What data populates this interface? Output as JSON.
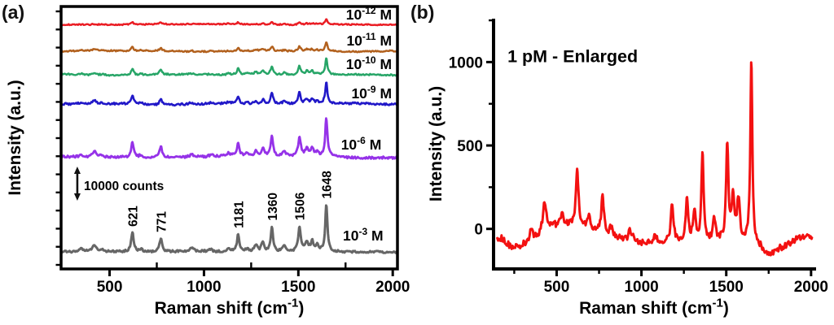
{
  "figure": {
    "background": "#ffffff"
  },
  "panels": {
    "a": {
      "letter": "(a)"
    },
    "b": {
      "letter": "(b)"
    }
  },
  "chart_data": [
    {
      "id": "a",
      "type": "line",
      "xlabel": {
        "pre": "Raman shift (cm",
        "sup": "-1",
        "post": ")"
      },
      "ylabel": "Intensity (a.u.)",
      "xlim": [
        243,
        2025
      ],
      "ylim": [
        0,
        1
      ],
      "xticks": [
        500,
        1000,
        1500,
        2000
      ],
      "xminor": [
        750,
        1250,
        1750
      ],
      "yminor_count": 15,
      "box": true,
      "grid": false,
      "axis_color": "#000000",
      "peak_label_color": "#3d3d3d",
      "peak_labels": [
        621,
        771,
        1181,
        1360,
        1506,
        1648
      ],
      "peak_label_series": "10^-3 M",
      "scalebar": {
        "label": "10000 counts",
        "x": 329,
        "arrow_frac": [
          0.263,
          0.387
        ],
        "label_x": 364,
        "label_y_frac": 0.3
      },
      "peaks_shared": [
        [
          350,
          12,
          0.07
        ],
        [
          420,
          13,
          0.14
        ],
        [
          460,
          10,
          0.05
        ],
        [
          621,
          8,
          0.4
        ],
        [
          665,
          10,
          0.05
        ],
        [
          771,
          8,
          0.28
        ],
        [
          935,
          13,
          0.07
        ],
        [
          1035,
          12,
          0.04
        ],
        [
          1130,
          10,
          0.07
        ],
        [
          1181,
          8,
          0.36
        ],
        [
          1230,
          10,
          0.08
        ],
        [
          1275,
          10,
          0.16
        ],
        [
          1312,
          9,
          0.22
        ],
        [
          1360,
          8,
          0.52
        ],
        [
          1425,
          11,
          0.12
        ],
        [
          1506,
          8,
          0.52
        ],
        [
          1545,
          10,
          0.2
        ],
        [
          1573,
          8,
          0.22
        ],
        [
          1600,
          8,
          0.12
        ],
        [
          1648,
          7,
          1.0
        ]
      ],
      "series": [
        {
          "name": "10^-3 M",
          "color": "#666666",
          "baseline": 0.065,
          "amp": 0.176,
          "noise": 0.004,
          "seed": 11,
          "width": 3.0,
          "tag": {
            "base": "10",
            "exp": "-3",
            "unit": " M",
            "x": 1950,
            "y_frac": 0.108
          }
        },
        {
          "name": "10^-6 M",
          "color": "#9532e8",
          "baseline": 0.427,
          "amp": 0.145,
          "noise": 0.0045,
          "seed": 22,
          "width": 2.8,
          "tag": {
            "base": "10",
            "exp": "-6",
            "unit": " M",
            "x": 1940,
            "y_frac": 0.455
          }
        },
        {
          "name": "10^-9 M",
          "color": "#2118c8",
          "baseline": 0.628,
          "amp": 0.08,
          "noise": 0.004,
          "seed": 33,
          "width": 2.6,
          "tag": {
            "base": "10",
            "exp": "-9",
            "unit": " M",
            "x": 1995,
            "y_frac": 0.65
          }
        },
        {
          "name": "10^-10 M",
          "color": "#27a567",
          "baseline": 0.74,
          "amp": 0.062,
          "noise": 0.003,
          "seed": 44,
          "width": 2.5,
          "tag": {
            "base": "10",
            "exp": "-10",
            "unit": " M",
            "x": 1995,
            "y_frac": 0.762
          }
        },
        {
          "name": "10^-11 M",
          "color": "#b2611e",
          "baseline": 0.83,
          "amp": 0.034,
          "noise": 0.0026,
          "seed": 55,
          "width": 2.5,
          "tag": {
            "base": "10",
            "exp": "-11",
            "unit": " M",
            "x": 1995,
            "y_frac": 0.851
          }
        },
        {
          "name": "10^-12 M",
          "color": "#ea1d24",
          "baseline": 0.932,
          "amp": 0.0186,
          "noise": 0.0022,
          "seed": 66,
          "width": 2.5,
          "tag": {
            "base": "10",
            "exp": "-12",
            "unit": " M",
            "x": 1995,
            "y_frac": 0.95
          }
        }
      ]
    },
    {
      "id": "b",
      "type": "line",
      "inset_title": {
        "text": "1 pM - Enlarged",
        "x": 210,
        "y": 1000
      },
      "xlabel": {
        "pre": "Raman shift (cm",
        "sup": "-1",
        "post": ")"
      },
      "ylabel": "Intensity (a.u.)",
      "xlim": [
        128,
        2020
      ],
      "ylim": [
        -240,
        1260
      ],
      "xticks": [
        500,
        1000,
        1500,
        2000
      ],
      "xminor": [
        250,
        750,
        1250,
        1750
      ],
      "yticks": [
        0,
        500,
        1000
      ],
      "yminor": [
        250,
        750,
        1250
      ],
      "box": false,
      "grid": false,
      "axis_color": "#000000",
      "series": [
        {
          "name": "1 pM",
          "color": "#f31111",
          "baseline": -70,
          "noise": 20,
          "wander": 28,
          "seed": 7,
          "width": 3.0,
          "xrange": [
            150,
            2005
          ],
          "peaks": [
            [
              165,
              40,
              45
            ],
            [
              260,
              70,
              -45
            ],
            [
              350,
              14,
              60
            ],
            [
              430,
              13,
              180
            ],
            [
              530,
              10,
              70
            ],
            [
              590,
              210,
              75
            ],
            [
              621,
              9,
              350
            ],
            [
              690,
              10,
              70
            ],
            [
              771,
              9,
              230
            ],
            [
              820,
              10,
              50
            ],
            [
              935,
              14,
              60
            ],
            [
              1000,
              160,
              -25
            ],
            [
              1080,
              12,
              35
            ],
            [
              1181,
              9,
              230
            ],
            [
              1268,
              9,
              250
            ],
            [
              1312,
              9,
              185
            ],
            [
              1360,
              8,
              520
            ],
            [
              1430,
              10,
              140
            ],
            [
              1506,
              8,
              580
            ],
            [
              1540,
              9,
              270
            ],
            [
              1572,
              9,
              250
            ],
            [
              1648,
              7,
              1100
            ],
            [
              1755,
              80,
              -95
            ],
            [
              1960,
              80,
              50
            ]
          ]
        }
      ]
    }
  ]
}
